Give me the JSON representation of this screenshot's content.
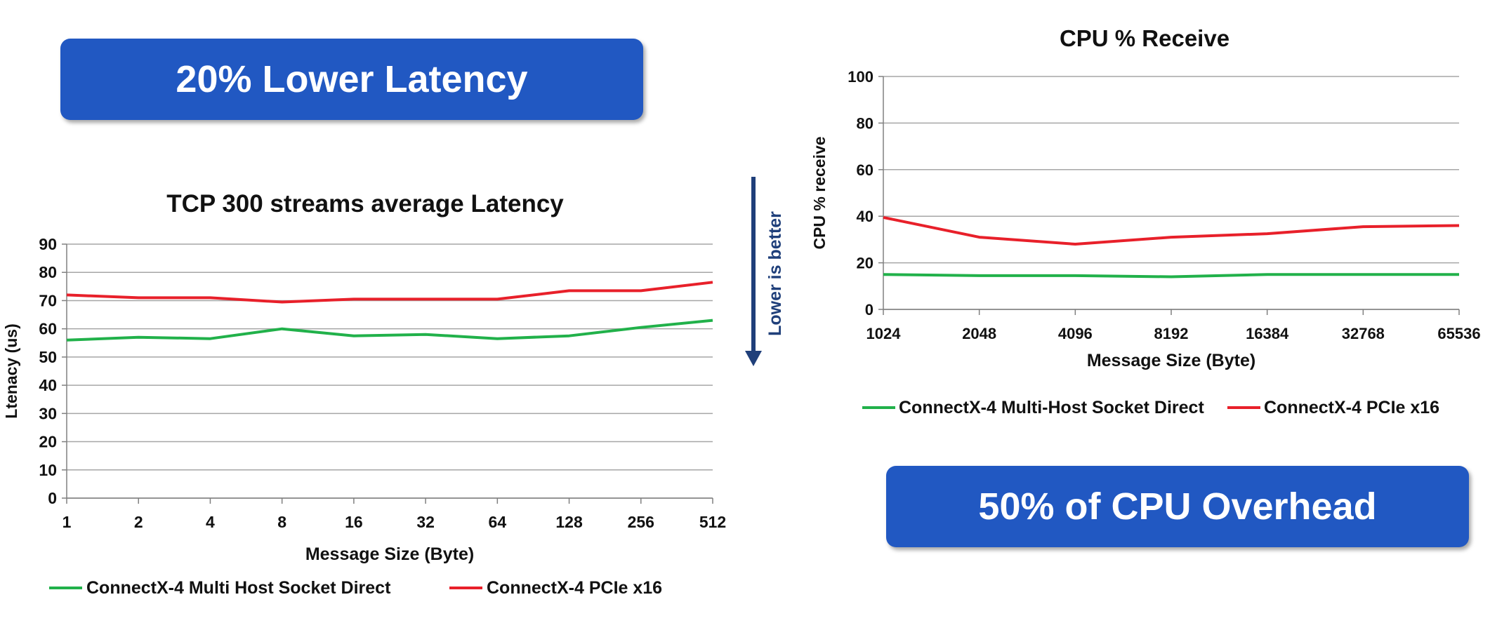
{
  "banners": {
    "left": "20% Lower Latency",
    "right": "50% of CPU Overhead"
  },
  "note": "Lower is better",
  "colors": {
    "banner": "#2158c2",
    "series_green": "#21b14a",
    "series_red": "#e8202a",
    "arrow": "#1f3f7a"
  },
  "chart_data": [
    {
      "type": "line",
      "title": "TCP 300 streams average Latency",
      "xlabel": "Message Size (Byte)",
      "ylabel": "Ltenacy (us)",
      "categories": [
        "1",
        "2",
        "4",
        "8",
        "16",
        "32",
        "64",
        "128",
        "256",
        "512"
      ],
      "ylim": [
        0,
        90
      ],
      "yticks": [
        "0",
        "10",
        "20",
        "30",
        "40",
        "50",
        "60",
        "70",
        "80",
        "90"
      ],
      "grid": true,
      "legend": "bottom",
      "series": [
        {
          "name": "ConnectX-4 Multi Host Socket Direct",
          "color": "#21b14a",
          "values": [
            56,
            57,
            56.5,
            60,
            57.5,
            58,
            56.5,
            57.5,
            60.5,
            63
          ]
        },
        {
          "name": "ConnectX-4 PCIe x16",
          "color": "#e8202a",
          "values": [
            72,
            71,
            71,
            69.5,
            70.5,
            70.5,
            70.5,
            73.5,
            73.5,
            76.5
          ]
        }
      ]
    },
    {
      "type": "line",
      "title": "CPU % Receive",
      "xlabel": "Message Size (Byte)",
      "ylabel": "CPU %  receive",
      "categories": [
        "1024",
        "2048",
        "4096",
        "8192",
        "16384",
        "32768",
        "65536"
      ],
      "ylim": [
        0,
        100
      ],
      "yticks": [
        "0",
        "20",
        "40",
        "60",
        "80",
        "100"
      ],
      "grid": true,
      "legend": "bottom",
      "series": [
        {
          "name": "ConnectX-4 Multi-Host Socket Direct",
          "color": "#21b14a",
          "values": [
            15,
            14.5,
            14.5,
            14,
            15,
            15,
            15
          ]
        },
        {
          "name": "ConnectX-4 PCIe x16",
          "color": "#e8202a",
          "values": [
            39.5,
            31,
            28,
            31,
            32.5,
            35.5,
            36
          ]
        }
      ]
    }
  ]
}
